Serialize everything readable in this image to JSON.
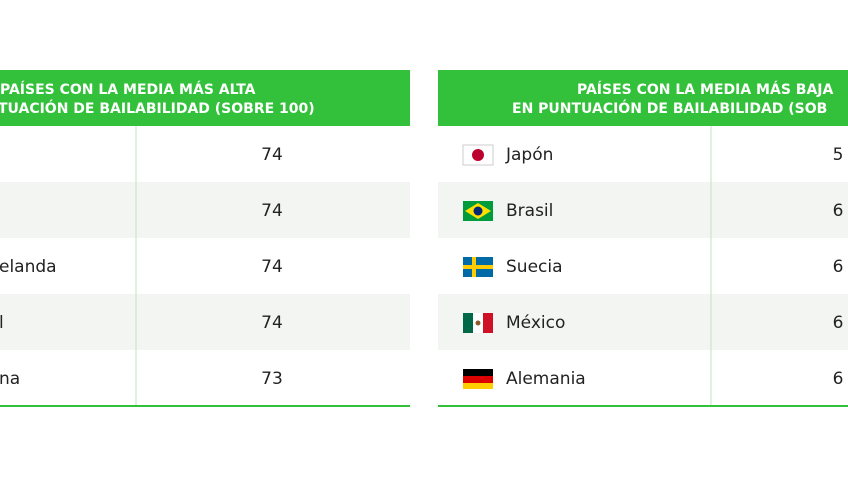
{
  "left_table": {
    "header": [
      "PAÍSES CON LA MEDIA MÁS ALTA",
      "TUACIÓN DE BAILABILIDAD (SOBRE 100)"
    ],
    "rows": [
      {
        "value": "74"
      },
      {
        "value": "74"
      },
      {
        "country": "elanda",
        "value": "74"
      },
      {
        "country": "l",
        "value": "74"
      },
      {
        "country": "na",
        "value": "73"
      }
    ]
  },
  "right_table": {
    "header": [
      "PAÍSES CON LA MEDIA MÁS BAJA",
      "EN PUNTUACIÓN DE BAILABILIDAD (SOB"
    ],
    "rows": [
      {
        "country": "Japón",
        "value": "5"
      },
      {
        "country": "Brasil",
        "value": "6"
      },
      {
        "country": "Suecia",
        "value": "6"
      },
      {
        "country": "México",
        "value": "6"
      },
      {
        "country": "Alemania",
        "value": "6"
      }
    ]
  }
}
